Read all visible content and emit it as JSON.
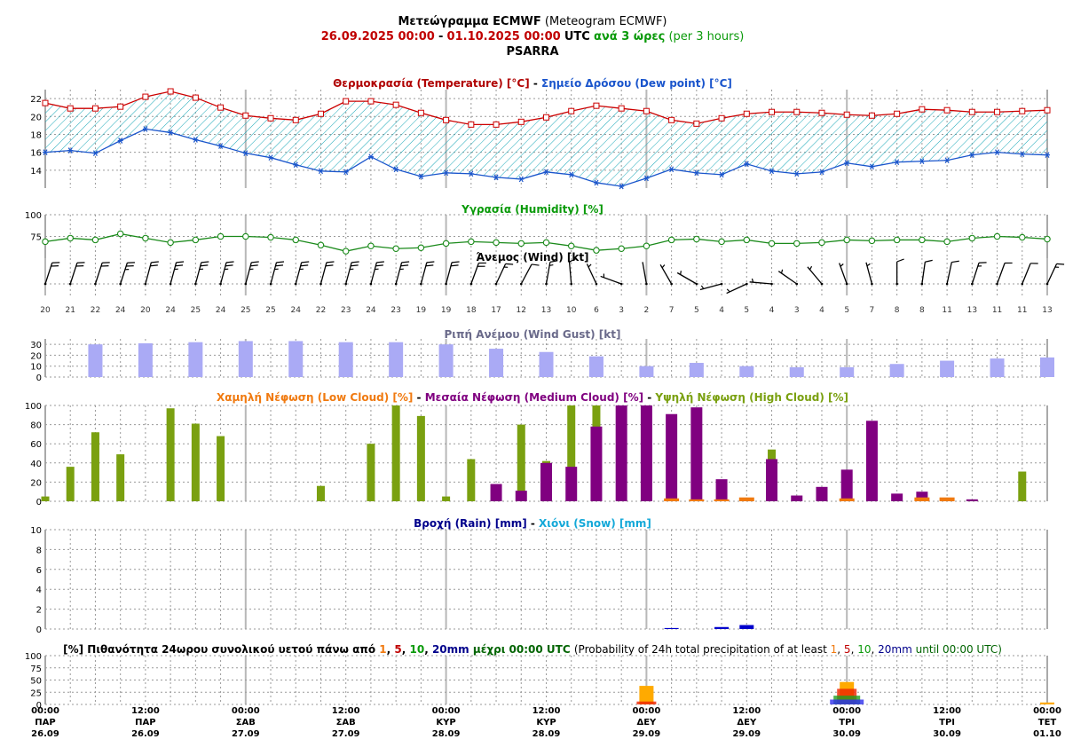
{
  "header": {
    "title_gr": "Μετεώγραμμα ECMWF",
    "title_en": "(Meteogram ECMWF)",
    "start": "26.09.2025 00:00",
    "dash": "-",
    "end": "01.10.2025 00:00",
    "utc": "UTC",
    "step_gr": "ανά 3 ώρες",
    "step_en": "(per 3 hours)",
    "location": "PSARRA"
  },
  "titles": {
    "temp_a": "Θερμοκρασία (Temperature) [°C]",
    "temp_sep": " - ",
    "temp_b": "Σημείο Δρόσου (Dew point) [°C]",
    "humidity": "Υγρασία (Humidity) [%]",
    "wind": "Άνεμος (Wind) [kt]",
    "gust": "Ριπή Ανέμου (Wind Gust) [kt]",
    "cloud_low": "Χαμηλή Νέφωση (Low Cloud) [%]",
    "cloud_sep": " - ",
    "cloud_med": "Μεσαία Νέφωση (Medium Cloud) [%]",
    "cloud_high": "Υψηλή Νέφωση (High Cloud) [%]",
    "rain": "Βροχή (Rain) [mm]",
    "rain_sep": " - ",
    "snow": "Χιόνι (Snow) [mm]",
    "prob_a": "[%] Πιθανότητα 24ωρου συνολικού υετού πάνω από",
    "prob_1": "1",
    "prob_c1": ",",
    "prob_5": "5",
    "prob_c2": ",",
    "prob_10": "10",
    "prob_c3": ",",
    "prob_20": "20mm",
    "prob_until": "μέχρι 00:00 UTC",
    "prob_en_a": "(Probability of 24h total precipitation of at least",
    "prob_en_1": "1",
    "prob_en_5": "5",
    "prob_en_10": "10",
    "prob_en_20": "20mm",
    "prob_en_until": "until 00:00 UTC)"
  },
  "colors": {
    "temp": "#cc0000",
    "dew": "#1a55cc",
    "hatch": "#1aa8b8",
    "humidity": "#1a8a1a",
    "gust": "#aaaaf5",
    "low": "#f07a10",
    "med": "#800080",
    "high": "#7aa010",
    "rain": "#0000cc",
    "p1": "#ffaa00",
    "p5": "#ee2200",
    "p10": "#20a020",
    "p20": "#3030ee"
  },
  "time_labels": [
    [
      "00:00",
      "ΠΑΡ",
      "26.09"
    ],
    [
      "12:00",
      "ΠΑΡ",
      "26.09"
    ],
    [
      "00:00",
      "ΣΑΒ",
      "27.09"
    ],
    [
      "12:00",
      "ΣΑΒ",
      "27.09"
    ],
    [
      "00:00",
      "ΚΥΡ",
      "28.09"
    ],
    [
      "12:00",
      "ΚΥΡ",
      "28.09"
    ],
    [
      "00:00",
      "ΔΕΥ",
      "29.09"
    ],
    [
      "12:00",
      "ΔΕΥ",
      "29.09"
    ],
    [
      "00:00",
      "ΤΡΙ",
      "30.09"
    ],
    [
      "12:00",
      "ΤΡΙ",
      "30.09"
    ],
    [
      "00:00",
      "ΤΕΤ",
      "01.10"
    ]
  ],
  "chart_data": [
    {
      "type": "line",
      "title": "Θερμοκρασία (Temperature) [°C] - Σημείο Δρόσου (Dew point) [°C]",
      "x_step_hours": 3,
      "y_ticks": [
        14,
        16,
        18,
        20,
        22
      ],
      "ylim": [
        12,
        23
      ],
      "series": [
        {
          "name": "Θερμοκρασία (Temperature) [°C]",
          "values": [
            21.5,
            20.9,
            20.9,
            21.1,
            22.2,
            22.8,
            22.1,
            21,
            20.1,
            19.8,
            19.6,
            20.3,
            21.7,
            21.7,
            21.3,
            20.4,
            19.6,
            19.1,
            19.1,
            19.4,
            19.9,
            20.6,
            21.2,
            20.9,
            20.6,
            19.6,
            19.2,
            19.8,
            20.3,
            20.5,
            20.5,
            20.4,
            20.2,
            20.1,
            20.3,
            20.8,
            20.7,
            20.5,
            20.5,
            20.6,
            20.7
          ]
        },
        {
          "name": "Σημείο Δρόσου (Dew point) [°C]",
          "values": [
            16,
            16.2,
            15.9,
            17.3,
            18.6,
            18.2,
            17.4,
            16.7,
            15.9,
            15.4,
            14.6,
            13.9,
            13.8,
            15.5,
            14.1,
            13.3,
            13.7,
            13.6,
            13.2,
            13,
            13.8,
            13.5,
            12.6,
            12.2,
            13.1,
            14.1,
            13.7,
            13.5,
            14.7,
            13.9,
            13.6,
            13.8,
            14.8,
            14.4,
            14.9,
            15,
            15.1,
            15.7,
            16,
            15.8,
            15.7
          ]
        }
      ]
    },
    {
      "type": "line",
      "title": "Υγρασία (Humidity) [%]",
      "y_ticks": [
        75,
        100
      ],
      "ylim": [
        50,
        100
      ],
      "series": [
        {
          "name": "Υγρασία (Humidity) [%]",
          "values": [
            69,
            73,
            71,
            78,
            73,
            68,
            71,
            75,
            75,
            74,
            71,
            65,
            58,
            64,
            61,
            62,
            67,
            69,
            68,
            67,
            68,
            64,
            59,
            61,
            64,
            71,
            72,
            69,
            71,
            67,
            67,
            68,
            71,
            70,
            71,
            71,
            69,
            73,
            75,
            74,
            72
          ]
        }
      ]
    },
    {
      "type": "wind",
      "title": "Άνεμος (Wind) [kt]",
      "speed_kt": [
        20,
        21,
        22,
        24,
        20,
        24,
        25,
        24,
        25,
        25,
        24,
        22,
        23,
        24,
        23,
        19,
        19,
        18,
        17,
        12,
        13,
        10,
        6,
        3,
        2,
        7,
        5,
        4,
        5,
        4,
        3,
        4,
        5,
        7,
        8,
        8,
        11,
        13,
        11,
        11,
        13
      ]
    },
    {
      "type": "bar",
      "title": "Ριπή Ανέμου (Wind Gust) [kt]",
      "y_ticks": [
        0,
        10,
        20,
        30
      ],
      "ylim": [
        0,
        35
      ],
      "x_index": [
        2,
        4,
        6,
        8,
        10,
        12,
        14,
        16,
        18,
        20,
        22,
        24,
        26,
        28,
        30,
        32,
        34,
        36,
        38,
        40
      ],
      "values": [
        30,
        31,
        32,
        33,
        33,
        32,
        32,
        30,
        26,
        23,
        19,
        10,
        13,
        10,
        9,
        9,
        12,
        15,
        17,
        18
      ]
    },
    {
      "type": "bar",
      "title": "Χαμηλή Νέφωση (Low Cloud) [%] - Μεσαία Νέφωση (Medium Cloud) [%] - Υψηλή Νέφωση (High Cloud) [%]",
      "y_ticks": [
        0,
        20,
        40,
        60,
        80,
        100
      ],
      "ylim": [
        0,
        100
      ],
      "series": [
        {
          "name": "Υψηλή Νέφωση (High Cloud) [%]",
          "values": [
            5,
            36,
            72,
            49,
            0,
            97,
            81,
            68,
            0,
            0,
            0,
            16,
            0,
            60,
            100,
            89,
            5,
            44,
            0,
            80,
            42,
            100,
            100,
            100,
            100,
            0,
            95,
            0,
            0,
            54,
            0,
            0,
            0,
            0,
            0,
            0,
            0,
            0,
            0,
            31,
            0
          ]
        },
        {
          "name": "Μεσαία Νέφωση (Medium Cloud) [%]",
          "values": [
            0,
            0,
            0,
            0,
            0,
            0,
            0,
            0,
            0,
            0,
            0,
            0,
            0,
            0,
            0,
            0,
            0,
            0,
            18,
            11,
            40,
            36,
            78,
            100,
            100,
            91,
            98,
            23,
            2,
            44,
            6,
            15,
            33,
            84,
            8,
            10,
            0,
            2,
            0,
            0,
            0
          ]
        },
        {
          "name": "Χαμηλή Νέφωση (Low Cloud) [%]",
          "values": [
            0,
            0,
            0,
            0,
            0,
            0,
            0,
            0,
            0,
            0,
            0,
            0,
            0,
            0,
            0,
            0,
            0,
            0,
            0,
            0,
            0,
            0,
            0,
            0,
            0,
            3,
            2,
            2,
            4,
            0,
            0,
            0,
            3,
            0,
            0,
            4,
            4,
            0,
            0,
            0,
            0
          ]
        }
      ]
    },
    {
      "type": "bar",
      "title": "Βροχή (Rain) [mm] - Χιόνι (Snow) [mm]",
      "y_ticks": [
        0,
        2,
        4,
        6,
        8,
        10
      ],
      "ylim": [
        0,
        10
      ],
      "series": [
        {
          "name": "Βροχή (Rain) [mm]",
          "values": [
            0,
            0,
            0,
            0,
            0,
            0,
            0,
            0,
            0,
            0,
            0,
            0,
            0,
            0,
            0,
            0,
            0,
            0,
            0,
            0,
            0,
            0,
            0,
            0,
            0,
            0.1,
            0,
            0.2,
            0.4,
            0,
            0,
            0,
            0,
            0,
            0,
            0,
            0,
            0,
            0,
            0,
            0
          ]
        },
        {
          "name": "Χιόνι (Snow) [mm]",
          "values": [
            0,
            0,
            0,
            0,
            0,
            0,
            0,
            0,
            0,
            0,
            0,
            0,
            0,
            0,
            0,
            0,
            0,
            0,
            0,
            0,
            0,
            0,
            0,
            0,
            0,
            0,
            0,
            0,
            0,
            0,
            0,
            0,
            0,
            0,
            0,
            0,
            0,
            0,
            0,
            0,
            0
          ]
        }
      ]
    },
    {
      "type": "bar",
      "title": "[%] Πιθανότητα 24ωρου συνολικού υετού πάνω από 1, 5, 10, 20mm μέχρι 00:00 UTC",
      "y_ticks": [
        0,
        25,
        50,
        75,
        100
      ],
      "ylim": [
        0,
        100
      ],
      "categories": [
        "29.09 00:00",
        "30.09 00:00",
        "01.10 00:00"
      ],
      "series": [
        {
          "name": "1",
          "values": [
            38,
            46,
            4
          ]
        },
        {
          "name": "5",
          "values": [
            6,
            32,
            0
          ]
        },
        {
          "name": "10",
          "values": [
            0,
            18,
            0
          ]
        },
        {
          "name": "20mm",
          "values": [
            0,
            10,
            0
          ]
        }
      ]
    }
  ]
}
